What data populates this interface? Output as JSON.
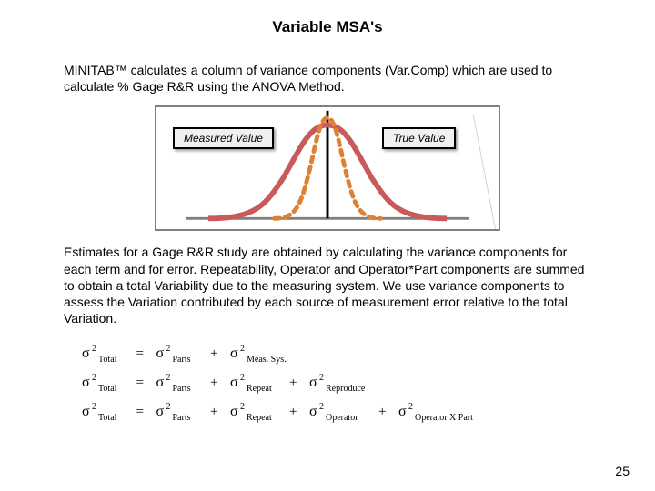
{
  "title": "Variable MSA's",
  "para1": "MINITAB™ calculates a column of variance components (Var.Comp) which are used to calculate % Gage R&R using the ANOVA Method.",
  "para2": "Estimates for a Gage R&R study are obtained by calculating the variance components for each term and for error. Repeatability, Operator and Operator*Part components are summed to obtain a total Variability due to the measuring system. We use variance components to assess the Variation contributed by each source of measurement error relative to the total Variation.",
  "chart": {
    "measured_label": "Measured Value",
    "true_label": "True Value",
    "wide_curve_color": "#c85a5a",
    "narrow_curve_color": "#e08030",
    "axis_color": "#000000",
    "bg": "#ffffff",
    "label_bg": "#f0f0f0"
  },
  "equations": {
    "rows": [
      [
        "Total",
        "Parts",
        "Meas. Sys."
      ],
      [
        "Total",
        "Parts",
        "Repeat",
        "Reproduce"
      ],
      [
        "Total",
        "Parts",
        "Repeat",
        "Operator",
        "Operator X Part"
      ]
    ],
    "sigma_color": "#000000"
  },
  "page_number": "25"
}
